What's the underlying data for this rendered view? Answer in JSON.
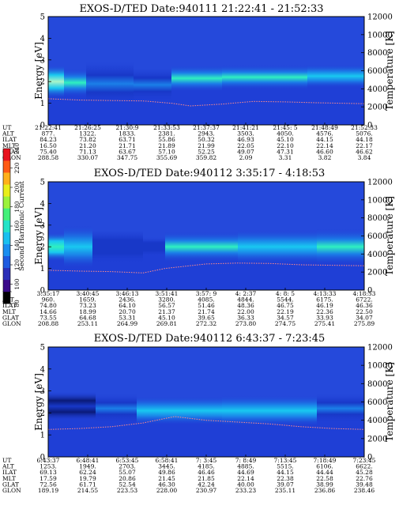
{
  "colorbar": {
    "label": "Second Harmonic Current",
    "ticks": [
      "80",
      "100",
      "120",
      "140",
      "160",
      "180",
      "200",
      "220",
      "240"
    ],
    "colors": [
      "#000000",
      "#3a0a8a",
      "#2b2fb8",
      "#1e5be0",
      "#1a8ef0",
      "#19c0f0",
      "#23e3c8",
      "#44f07a",
      "#9cf23b",
      "#e9ee1a",
      "#ffb01a",
      "#ff5a14",
      "#e8121e"
    ]
  },
  "chart_data": [
    {
      "type": "heatmap",
      "title": "EXOS-D/TED   Date:940111   21:22:41 - 21:52:33",
      "ylabel": "Energy [eV]",
      "y2label": "Temperature [K]",
      "ylim": [
        0,
        5
      ],
      "yticks": [
        "0",
        "1",
        "2",
        "3",
        "4",
        "5"
      ],
      "y2lim": [
        0,
        12000
      ],
      "y2ticks": [
        "0",
        "2000",
        "4000",
        "6000",
        "8000",
        "10000",
        "12000"
      ],
      "orbit_rows": [
        "UT",
        "ALT",
        "ILAT",
        "MLT",
        "GLAT",
        "GLON"
      ],
      "orbit_cols": [
        [
          "21:22:41",
          "877.",
          "84.23",
          "16.50",
          "75.40",
          "288.58"
        ],
        [
          "21:26:25",
          "1322.",
          "73.82",
          "21.20",
          "71.13",
          "330.07"
        ],
        [
          "21:30:9",
          "1833.",
          "63.71",
          "21.71",
          "63.67",
          "347.75"
        ],
        [
          "21:33:53",
          "2381.",
          "55.86",
          "21.89",
          "57.10",
          "355.69"
        ],
        [
          "21:37:37",
          "2943.",
          "50.32",
          "21.99",
          "52.25",
          "359.82"
        ],
        [
          "21:41:21",
          "3503.",
          "46.93",
          "22.05",
          "49.07",
          "2.09"
        ],
        [
          "21:45: 5",
          "4050.",
          "45.10",
          "22.10",
          "47.31",
          "3.31"
        ],
        [
          "21:48:49",
          "4576.",
          "44.15",
          "22.14",
          "46.60",
          "3.82"
        ],
        [
          "21:52:33",
          "5076.",
          "44.18",
          "22.17",
          "46.62",
          "3.84"
        ]
      ],
      "bands": [
        {
          "t0": 0.0,
          "t1": 0.05,
          "e": 2.0,
          "hw": 0.35,
          "level": 0.85
        },
        {
          "t0": 0.05,
          "t1": 0.12,
          "e": 1.95,
          "hw": 0.3,
          "level": 0.62
        },
        {
          "t0": 0.12,
          "t1": 0.27,
          "e": 1.9,
          "hw": 0.45,
          "level": 0.38
        },
        {
          "t0": 0.27,
          "t1": 0.39,
          "e": 1.85,
          "hw": 0.35,
          "level": 0.3
        },
        {
          "t0": 0.39,
          "t1": 0.55,
          "e": 2.15,
          "hw": 0.28,
          "level": 0.62
        },
        {
          "t0": 0.55,
          "t1": 0.82,
          "e": 2.2,
          "hw": 0.26,
          "level": 0.66
        },
        {
          "t0": 0.82,
          "t1": 1.0,
          "e": 2.25,
          "hw": 0.25,
          "level": 0.58
        }
      ],
      "temperature_k": [
        [
          0.0,
          2900
        ],
        [
          0.1,
          2750
        ],
        [
          0.2,
          2700
        ],
        [
          0.3,
          2650
        ],
        [
          0.39,
          2400
        ],
        [
          0.45,
          2100
        ],
        [
          0.55,
          2300
        ],
        [
          0.65,
          2600
        ],
        [
          0.75,
          2550
        ],
        [
          0.85,
          2450
        ],
        [
          1.0,
          2350
        ]
      ]
    },
    {
      "type": "heatmap",
      "title": "EXOS-D/TED   Date:940112   3:35:17 - 4:18:53",
      "ylabel": "Energy [eV]",
      "y2label": "Temperature [K]",
      "ylim": [
        0,
        5
      ],
      "yticks": [
        "0",
        "1",
        "2",
        "3",
        "4",
        "5"
      ],
      "y2lim": [
        0,
        12000
      ],
      "y2ticks": [
        "0",
        "2000",
        "4000",
        "6000",
        "8000",
        "10000",
        "12000"
      ],
      "orbit_rows": [
        "UT",
        "ALT",
        "ILAT",
        "MLT",
        "GLAT",
        "GLON"
      ],
      "orbit_cols": [
        [
          "3:35:17",
          "960.",
          "74.80",
          "14.66",
          "73.55",
          "208.88"
        ],
        [
          "3:40:45",
          "1659.",
          "73.23",
          "18.99",
          "64.68",
          "253.11"
        ],
        [
          "3:46:13",
          "2436.",
          "64.10",
          "20.70",
          "53.31",
          "264.99"
        ],
        [
          "3:51:41",
          "3280.",
          "56.57",
          "21.37",
          "45.10",
          "269.81"
        ],
        [
          "3:57: 9",
          "4085.",
          "51.46",
          "21.74",
          "39.65",
          "272.32"
        ],
        [
          "4: 2:37",
          "4844.",
          "48.36",
          "22.00",
          "36.33",
          "273.80"
        ],
        [
          "4: 8: 5",
          "5544.",
          "46.75",
          "22.19",
          "34.57",
          "274.75"
        ],
        [
          "4:13:33",
          "6175.",
          "46.19",
          "22.36",
          "33.93",
          "275.41"
        ],
        [
          "4:18:53",
          "6722.",
          "46.36",
          "22.50",
          "34.07",
          "275.89"
        ]
      ],
      "bands": [
        {
          "t0": 0.0,
          "t1": 0.05,
          "e": 2.0,
          "hw": 0.3,
          "level": 0.72
        },
        {
          "t0": 0.05,
          "t1": 0.14,
          "e": 2.0,
          "hw": 0.45,
          "level": 0.45
        },
        {
          "t0": 0.14,
          "t1": 0.3,
          "e": 2.0,
          "hw": 0.35,
          "level": 0.22
        },
        {
          "t0": 0.3,
          "t1": 0.37,
          "e": 2.0,
          "hw": 0.2,
          "level": 0.2
        },
        {
          "t0": 0.37,
          "t1": 0.6,
          "e": 2.0,
          "hw": 0.32,
          "level": 0.62
        },
        {
          "t0": 0.6,
          "t1": 0.85,
          "e": 2.0,
          "hw": 0.36,
          "level": 0.55
        },
        {
          "t0": 0.85,
          "t1": 1.0,
          "e": 2.0,
          "hw": 0.38,
          "level": 0.64
        }
      ],
      "temperature_k": [
        [
          0.0,
          2200
        ],
        [
          0.1,
          2100
        ],
        [
          0.2,
          2050
        ],
        [
          0.3,
          1900
        ],
        [
          0.37,
          2400
        ],
        [
          0.5,
          2900
        ],
        [
          0.6,
          3000
        ],
        [
          0.7,
          2950
        ],
        [
          0.8,
          2800
        ],
        [
          0.9,
          2750
        ],
        [
          1.0,
          2700
        ]
      ]
    },
    {
      "type": "heatmap",
      "title": "EXOS-D/TED   Date:940112   6:43:37 - 7:23:45",
      "ylabel": "Energy [eV]",
      "y2label": "Temperature [K]",
      "ylim": [
        0,
        5
      ],
      "yticks": [
        "0",
        "1",
        "2",
        "3",
        "4",
        "5"
      ],
      "y2lim": [
        0,
        12000
      ],
      "y2ticks": [
        "0",
        "2000",
        "4000",
        "6000",
        "8000",
        "10000",
        "12000"
      ],
      "orbit_rows": [
        "UT",
        "ALT",
        "ILAT",
        "MLT",
        "GLAT",
        "GLON"
      ],
      "orbit_cols": [
        [
          "6:43:37",
          "1253.",
          "69.13",
          "17.59",
          "72.56",
          "189.19"
        ],
        [
          "6:48:41",
          "1949.",
          "62.24",
          "19.79",
          "61.71",
          "214.55"
        ],
        [
          "6:53:45",
          "2703.",
          "55.07",
          "20.86",
          "52.54",
          "223.53"
        ],
        [
          "6:58:41",
          "3445.",
          "49.86",
          "21.45",
          "46.30",
          "228.00"
        ],
        [
          "7: 3:45",
          "4185.",
          "46.46",
          "21.85",
          "42.24",
          "230.97"
        ],
        [
          "7: 8:49",
          "4885.",
          "44.69",
          "22.14",
          "40.00",
          "233.23"
        ],
        [
          "7:13:45",
          "5515.",
          "44.15",
          "22.38",
          "39.07",
          "235.11"
        ],
        [
          "7:18:49",
          "6106.",
          "44.44",
          "22.58",
          "38.99",
          "236.86"
        ],
        [
          "7:23:45",
          "6622.",
          "45.28",
          "22.76",
          "39.48",
          "238.46"
        ]
      ],
      "bands": [
        {
          "t0": 0.0,
          "t1": 0.15,
          "e": 2.3,
          "hw": 0.3,
          "level": 0.12
        },
        {
          "t0": 0.15,
          "t1": 0.28,
          "e": 2.2,
          "hw": 0.3,
          "level": 0.3
        },
        {
          "t0": 0.28,
          "t1": 0.55,
          "e": 2.1,
          "hw": 0.3,
          "level": 0.52
        },
        {
          "t0": 0.55,
          "t1": 0.85,
          "e": 2.1,
          "hw": 0.32,
          "level": 0.45
        },
        {
          "t0": 0.85,
          "t1": 1.0,
          "e": 2.2,
          "hw": 0.3,
          "level": 0.25
        }
      ],
      "temperature_k": [
        [
          0.0,
          3000
        ],
        [
          0.1,
          3100
        ],
        [
          0.2,
          3300
        ],
        [
          0.3,
          3700
        ],
        [
          0.4,
          4400
        ],
        [
          0.5,
          4000
        ],
        [
          0.6,
          3800
        ],
        [
          0.7,
          3600
        ],
        [
          0.8,
          3300
        ],
        [
          0.9,
          3100
        ],
        [
          1.0,
          3000
        ]
      ]
    }
  ]
}
